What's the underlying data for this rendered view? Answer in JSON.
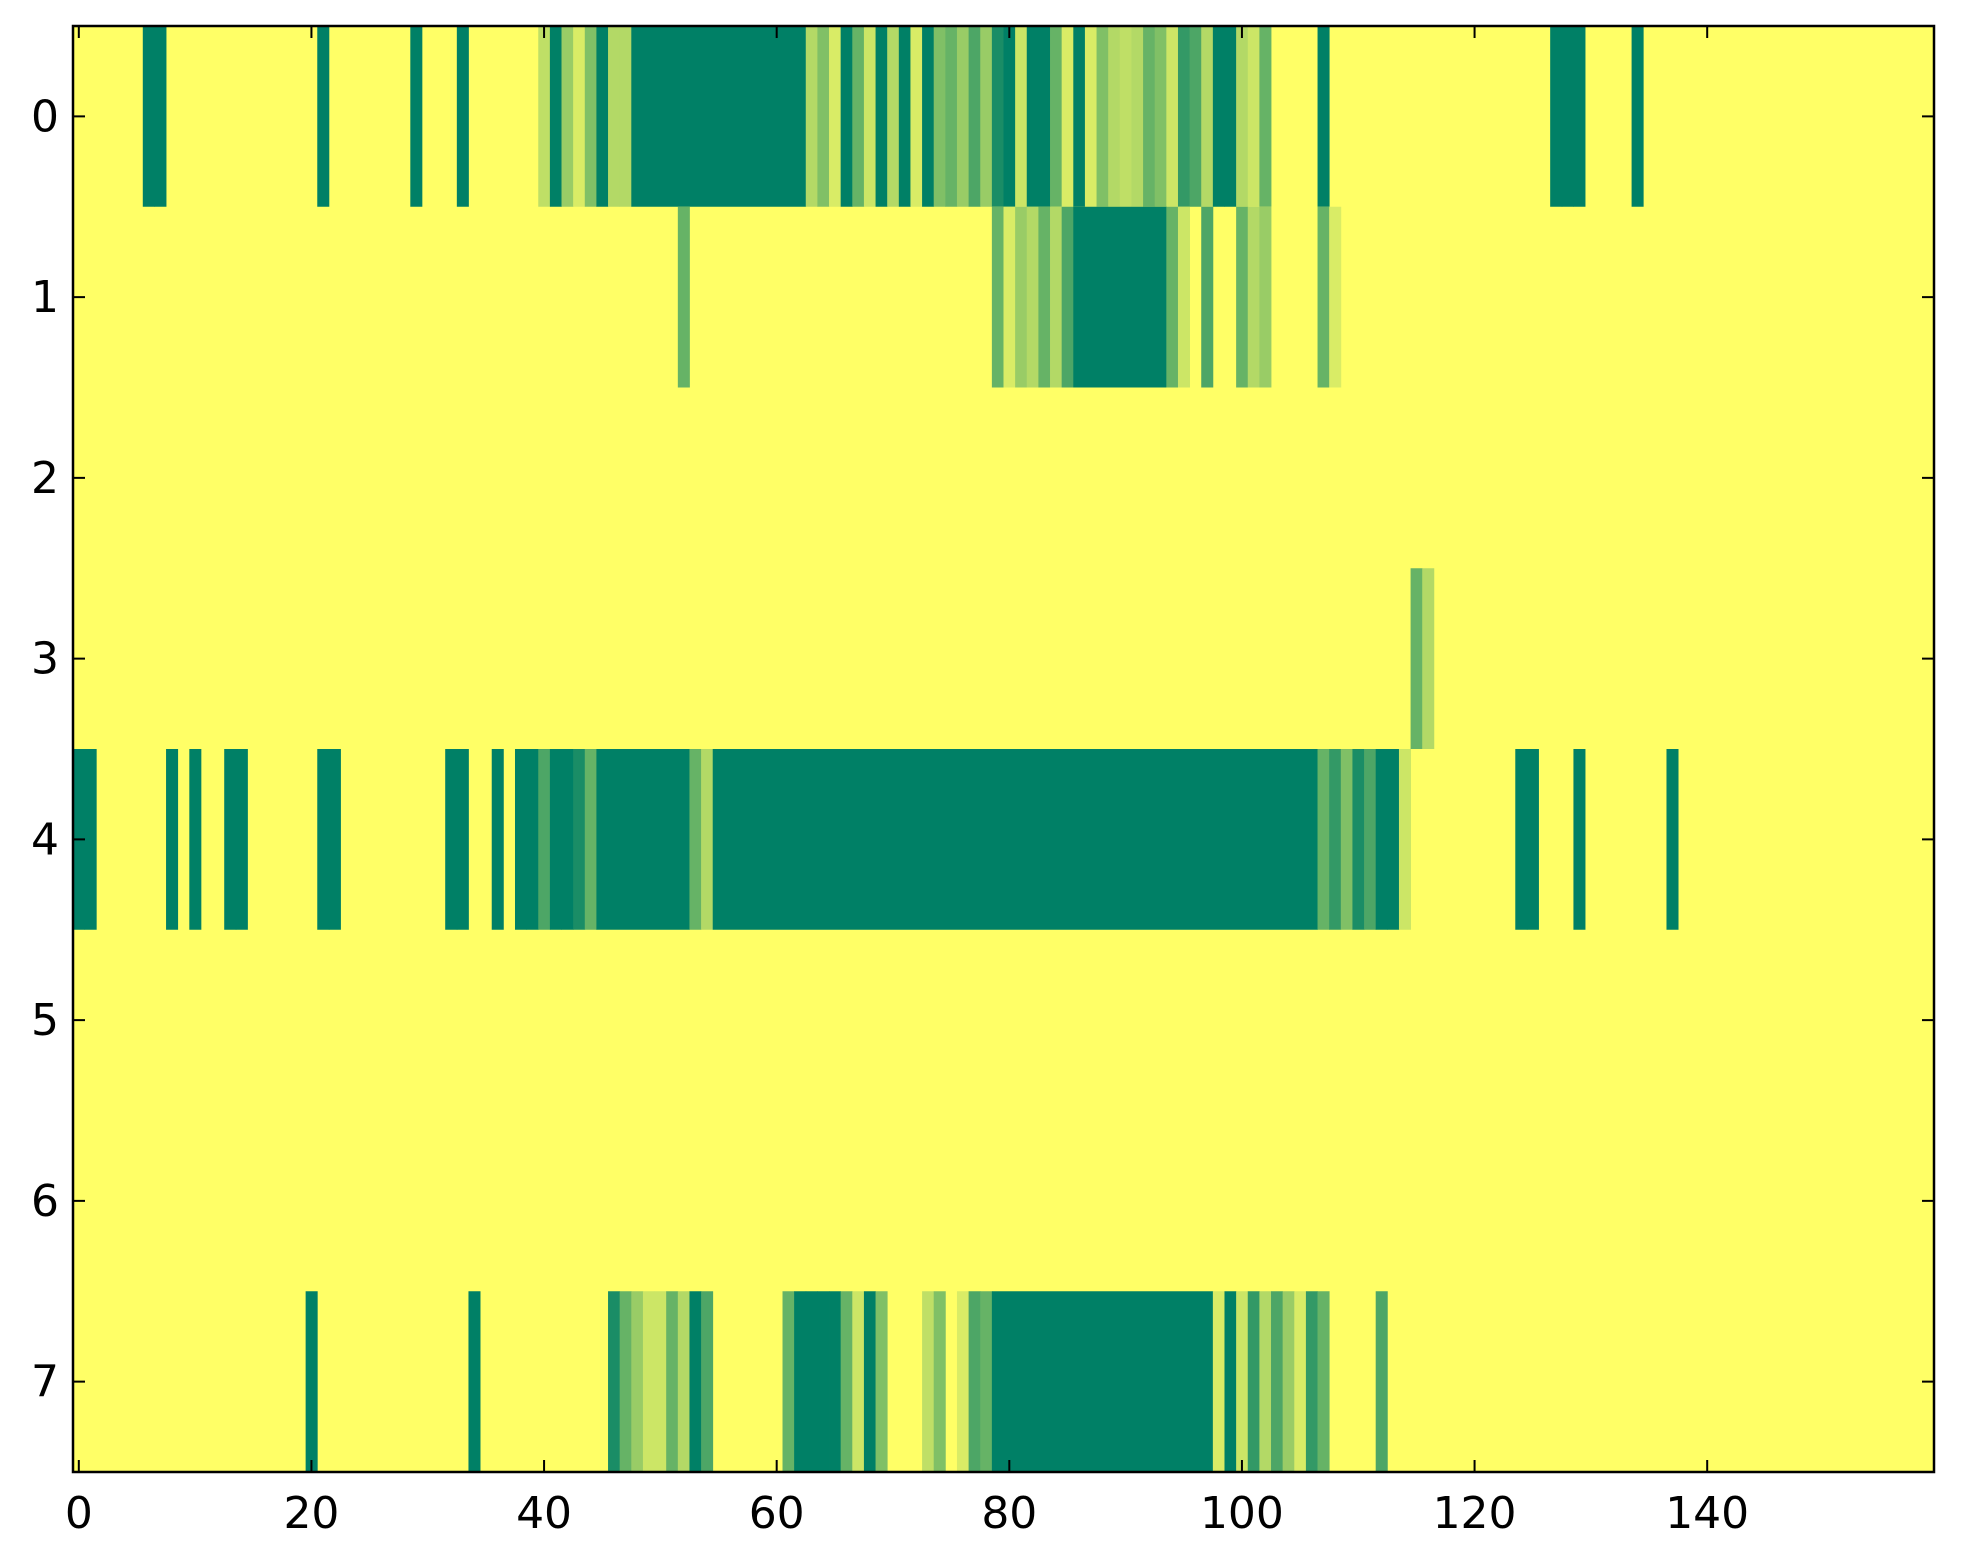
{
  "chart_data": {
    "type": "heatmap",
    "title": "",
    "xlabel": "",
    "ylabel": "",
    "xlim": [
      -0.5,
      159.5
    ],
    "ylim": [
      7.5,
      -0.5
    ],
    "x_ticks": [
      0,
      20,
      40,
      60,
      80,
      100,
      120,
      140
    ],
    "x_tick_labels": [
      "0",
      "20",
      "40",
      "60",
      "80",
      "100",
      "120",
      "140"
    ],
    "y_ticks": [
      0,
      1,
      2,
      3,
      4,
      5,
      6,
      7
    ],
    "y_tick_labels": [
      "0",
      "1",
      "2",
      "3",
      "4",
      "5",
      "6",
      "7"
    ],
    "n_columns": 160,
    "n_rows": 8,
    "colormap": "summer_r",
    "value_range": [
      0,
      1
    ],
    "background_value": 0,
    "colors": {
      "low": "#ffff66",
      "high": "#008066"
    },
    "grid": false,
    "rows": [
      {
        "row": 0,
        "cells": [
          [
            6,
            1
          ],
          [
            7,
            1
          ],
          [
            21,
            1
          ],
          [
            29,
            1
          ],
          [
            33,
            1
          ],
          [
            40,
            0.25
          ],
          [
            41,
            1
          ],
          [
            42,
            0.4
          ],
          [
            43,
            0.15
          ],
          [
            44,
            0.5
          ],
          [
            45,
            1
          ],
          [
            46,
            0.3
          ],
          [
            47,
            0.3
          ],
          [
            [
              48,
              62
            ],
            1
          ],
          [
            63,
            0.3
          ],
          [
            64,
            0.5
          ],
          [
            65,
            0.15
          ],
          [
            66,
            1
          ],
          [
            67,
            0.6
          ],
          [
            68,
            0.2
          ],
          [
            69,
            1
          ],
          [
            70,
            0.3
          ],
          [
            71,
            1
          ],
          [
            72,
            0.15
          ],
          [
            73,
            1
          ],
          [
            74,
            0.5
          ],
          [
            75,
            0.6
          ],
          [
            76,
            0.4
          ],
          [
            77,
            0.7
          ],
          [
            78,
            0.4
          ],
          [
            79,
            0.9
          ],
          [
            80,
            1
          ],
          [
            81,
            0.2
          ],
          [
            82,
            1
          ],
          [
            83,
            1
          ],
          [
            84,
            0.6
          ],
          [
            85,
            0.15
          ],
          [
            86,
            1
          ],
          [
            87,
            0.15
          ],
          [
            88,
            0.5
          ],
          [
            89,
            0.3
          ],
          [
            90,
            0.25
          ],
          [
            91,
            0.3
          ],
          [
            92,
            0.6
          ],
          [
            93,
            0.5
          ],
          [
            94,
            0.2
          ],
          [
            95,
            0.8
          ],
          [
            96,
            0.7
          ],
          [
            97,
            0.3
          ],
          [
            98,
            1
          ],
          [
            99,
            1
          ],
          [
            100,
            0.3
          ],
          [
            101,
            0.2
          ],
          [
            102,
            0.6
          ],
          [
            107,
            1
          ],
          [
            127,
            1
          ],
          [
            128,
            1
          ],
          [
            129,
            1
          ],
          [
            134,
            1
          ]
        ]
      },
      {
        "row": 1,
        "cells": [
          [
            52,
            0.6
          ],
          [
            79,
            0.6
          ],
          [
            80,
            0.15
          ],
          [
            81,
            0.4
          ],
          [
            82,
            0.3
          ],
          [
            83,
            0.6
          ],
          [
            84,
            0.3
          ],
          [
            85,
            0.7
          ],
          [
            [
              86,
              93
            ],
            1
          ],
          [
            94,
            0.6
          ],
          [
            95,
            0.2
          ],
          [
            97,
            0.7
          ],
          [
            100,
            0.6
          ],
          [
            101,
            0.3
          ],
          [
            102,
            0.4
          ],
          [
            107,
            0.6
          ],
          [
            108,
            0.15
          ]
        ]
      },
      {
        "row": 2,
        "cells": []
      },
      {
        "row": 3,
        "cells": [
          [
            115,
            0.6
          ],
          [
            116,
            0.3
          ]
        ]
      },
      {
        "row": 4,
        "cells": [
          [
            0,
            1
          ],
          [
            1,
            1
          ],
          [
            8,
            1
          ],
          [
            10,
            1
          ],
          [
            13,
            1
          ],
          [
            14,
            1
          ],
          [
            21,
            1
          ],
          [
            22,
            1
          ],
          [
            32,
            1
          ],
          [
            33,
            1
          ],
          [
            36,
            1
          ],
          [
            38,
            1
          ],
          [
            39,
            1
          ],
          [
            40,
            0.7
          ],
          [
            41,
            1
          ],
          [
            42,
            1
          ],
          [
            43,
            0.9
          ],
          [
            44,
            0.6
          ],
          [
            [
              45,
              52
            ],
            1
          ],
          [
            53,
            0.6
          ],
          [
            54,
            0.3
          ],
          [
            [
              55,
              106
            ],
            1
          ],
          [
            107,
            0.6
          ],
          [
            108,
            0.8
          ],
          [
            109,
            0.5
          ],
          [
            110,
            0.9
          ],
          [
            111,
            0.7
          ],
          [
            112,
            1
          ],
          [
            113,
            1
          ],
          [
            114,
            0.2
          ],
          [
            124,
            1
          ],
          [
            125,
            1
          ],
          [
            129,
            1
          ],
          [
            137,
            1
          ]
        ]
      },
      {
        "row": 5,
        "cells": []
      },
      {
        "row": 6,
        "cells": []
      },
      {
        "row": 7,
        "cells": [
          [
            20,
            1
          ],
          [
            34,
            1
          ],
          [
            46,
            0.9
          ],
          [
            47,
            0.6
          ],
          [
            48,
            0.4
          ],
          [
            49,
            0.2
          ],
          [
            50,
            0.2
          ],
          [
            51,
            0.6
          ],
          [
            52,
            0.3
          ],
          [
            53,
            1
          ],
          [
            54,
            0.7
          ],
          [
            61,
            0.6
          ],
          [
            62,
            1
          ],
          [
            63,
            1
          ],
          [
            64,
            1
          ],
          [
            65,
            1
          ],
          [
            66,
            0.6
          ],
          [
            67,
            0.2
          ],
          [
            68,
            1
          ],
          [
            69,
            0.5
          ],
          [
            73,
            0.25
          ],
          [
            74,
            0.5
          ],
          [
            76,
            0.15
          ],
          [
            77,
            0.7
          ],
          [
            78,
            0.6
          ],
          [
            [
              79,
              97
            ],
            1
          ],
          [
            98,
            0.15
          ],
          [
            99,
            1
          ],
          [
            100,
            0.2
          ],
          [
            101,
            0.8
          ],
          [
            102,
            0.3
          ],
          [
            103,
            0.7
          ],
          [
            104,
            0.4
          ],
          [
            105,
            0.15
          ],
          [
            106,
            0.8
          ],
          [
            107,
            0.6
          ],
          [
            112,
            0.7
          ]
        ]
      }
    ]
  }
}
